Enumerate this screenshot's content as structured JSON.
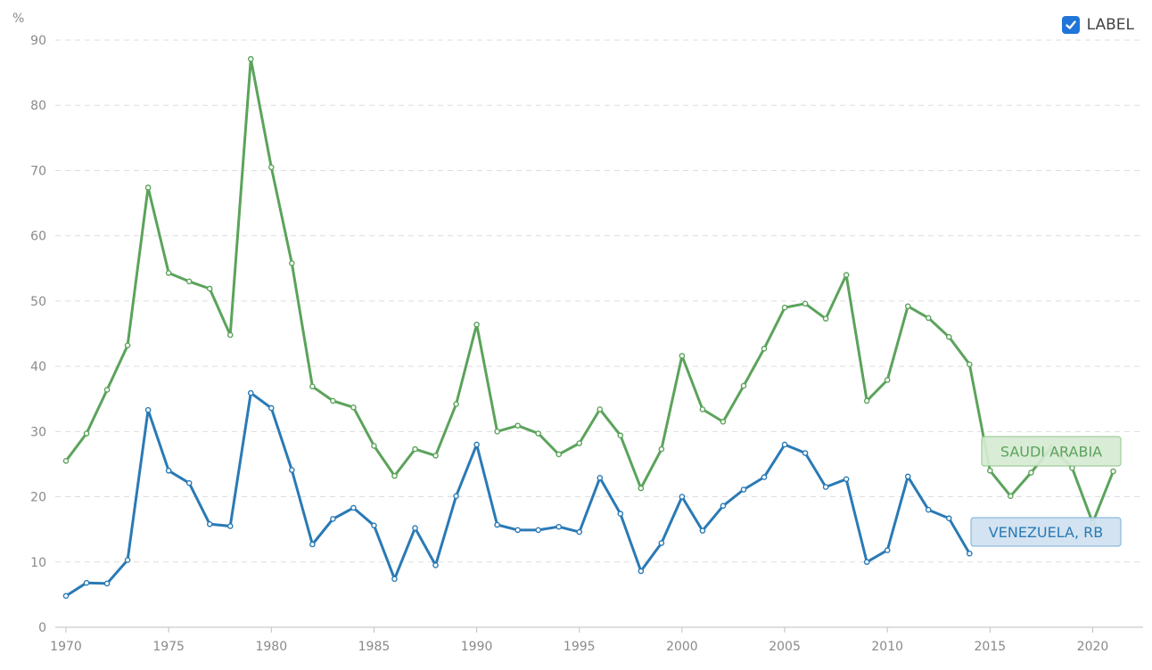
{
  "toggle": {
    "label": "LABEL",
    "checked": true
  },
  "colors": {
    "saudi": "#5ba35b",
    "venezuela": "#2a7ab5",
    "grid": "#dddddd",
    "axis": "#bfbfbf"
  },
  "chart_data": {
    "type": "line",
    "ylabel": "%",
    "ylim": [
      0,
      90
    ],
    "yticks": [
      0,
      10,
      20,
      30,
      40,
      50,
      60,
      70,
      80,
      90
    ],
    "xlim": [
      1970,
      2022.5
    ],
    "xticks": [
      1970,
      1975,
      1980,
      1985,
      1990,
      1995,
      2000,
      2005,
      2010,
      2015,
      2020
    ],
    "grid": true,
    "series": [
      {
        "name": "SAUDI ARABIA",
        "color": "#5ba35b",
        "x": [
          1970,
          1971,
          1972,
          1973,
          1974,
          1975,
          1976,
          1977,
          1978,
          1979,
          1980,
          1981,
          1982,
          1983,
          1984,
          1985,
          1986,
          1987,
          1988,
          1989,
          1990,
          1991,
          1992,
          1993,
          1994,
          1995,
          1996,
          1997,
          1998,
          1999,
          2000,
          2001,
          2002,
          2003,
          2004,
          2005,
          2006,
          2007,
          2008,
          2009,
          2010,
          2011,
          2012,
          2013,
          2014,
          2015,
          2016,
          2017,
          2018,
          2019,
          2020,
          2021
        ],
        "y": [
          25.5,
          29.7,
          36.4,
          43.2,
          67.4,
          54.3,
          53.0,
          51.9,
          44.8,
          87.1,
          70.5,
          55.8,
          36.9,
          34.7,
          33.7,
          27.8,
          23.2,
          27.3,
          26.3,
          34.2,
          46.4,
          30.0,
          30.9,
          29.7,
          26.5,
          28.2,
          33.4,
          29.4,
          21.3,
          27.3,
          41.6,
          33.4,
          31.5,
          37.0,
          42.7,
          49.0,
          49.6,
          47.3,
          54.0,
          34.7,
          37.9,
          49.2,
          47.4,
          44.5,
          40.3,
          24.0,
          20.1,
          23.7,
          27.6,
          24.4,
          16.0,
          23.9
        ]
      },
      {
        "name": "VENEZUELA, RB",
        "color": "#2a7ab5",
        "x": [
          1970,
          1971,
          1972,
          1973,
          1974,
          1975,
          1976,
          1977,
          1978,
          1979,
          1980,
          1981,
          1982,
          1983,
          1984,
          1985,
          1986,
          1987,
          1988,
          1989,
          1990,
          1991,
          1992,
          1993,
          1994,
          1995,
          1996,
          1997,
          1998,
          1999,
          2000,
          2001,
          2002,
          2003,
          2004,
          2005,
          2006,
          2007,
          2008,
          2009,
          2010,
          2011,
          2012,
          2013,
          2014
        ],
        "y": [
          4.8,
          6.8,
          6.7,
          10.3,
          33.3,
          24.0,
          22.1,
          15.8,
          15.5,
          35.9,
          33.6,
          24.1,
          12.7,
          16.6,
          18.3,
          15.6,
          7.4,
          15.2,
          9.5,
          20.1,
          28.0,
          15.7,
          14.9,
          14.9,
          15.4,
          14.6,
          22.9,
          17.4,
          8.6,
          12.9,
          20.0,
          14.8,
          18.6,
          21.1,
          23.0,
          28.0,
          26.7,
          21.5,
          22.7,
          10.0,
          11.8,
          23.1,
          18.0,
          16.7,
          11.3
        ]
      }
    ]
  },
  "labels": [
    {
      "text": "SAUDI ARABIA",
      "series": 0
    },
    {
      "text": "VENEZUELA, RB",
      "series": 1
    }
  ]
}
